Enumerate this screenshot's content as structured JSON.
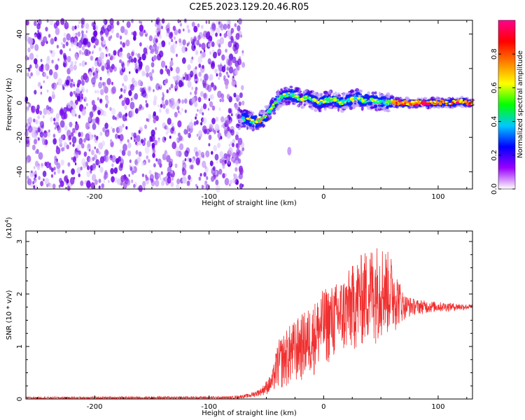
{
  "title": "C2E5.2023.129.20.46.R05",
  "chart_data": [
    {
      "type": "heatmap",
      "xlabel": "Height of straight line (km)",
      "ylabel": "Frequency (Hz)",
      "xlim": [
        -260,
        130
      ],
      "ylim": [
        -50,
        48
      ],
      "xticks": [
        -200,
        -100,
        0,
        100
      ],
      "yticks": [
        -40,
        -20,
        0,
        20,
        40
      ],
      "noise_region_end_x": -70,
      "trace": {
        "x": [
          -75,
          -70,
          -65,
          -60,
          -55,
          -50,
          -45,
          -40,
          -35,
          -30,
          -25,
          -20,
          -15,
          -10,
          -5,
          0,
          5,
          10,
          15,
          20,
          25,
          30,
          35,
          40,
          45,
          50,
          55,
          60,
          65,
          70,
          75,
          80,
          85,
          90,
          95,
          100,
          105,
          110,
          115,
          120,
          125,
          130
        ],
        "freq": [
          -9,
          -9,
          -10,
          -11,
          -10,
          -7,
          -3,
          2,
          4,
          5,
          4,
          2,
          3,
          2,
          0,
          1,
          2,
          2,
          0,
          1,
          2,
          3,
          1,
          2,
          1,
          1,
          0,
          1,
          0,
          0,
          0,
          0,
          0,
          0,
          0,
          0,
          0,
          0,
          0,
          1,
          0,
          0
        ]
      },
      "colorbar": {
        "label": "Normalized spectral amplitude",
        "range": [
          0,
          1
        ],
        "ticks": [
          "0.0",
          "0.2",
          "0.4",
          "0.6",
          "0.8"
        ],
        "colors": [
          "#ffffff",
          "#9a00ff",
          "#0000ff",
          "#00c8ff",
          "#00ff00",
          "#ffff00",
          "#ff8000",
          "#ff0000",
          "#ff0090"
        ]
      }
    },
    {
      "type": "line",
      "xlabel": "Height of straight line (km)",
      "ylabel": "SNR (10 * v/v)",
      "y_multiplier": "(x10",
      "y_multiplier_exp": "4",
      "y_multiplier_close": ")",
      "xlim": [
        -260,
        130
      ],
      "ylim": [
        0,
        3.2
      ],
      "xticks": [
        -200,
        -100,
        0,
        100
      ],
      "yticks": [
        0,
        1,
        2,
        3
      ],
      "color": "#f03030",
      "envelope": {
        "x": [
          -260,
          -80,
          -65,
          -55,
          -45,
          -40,
          -30,
          -20,
          -10,
          0,
          10,
          20,
          30,
          40,
          50,
          60,
          70,
          80,
          100,
          130
        ],
        "upper": [
          0.04,
          0.05,
          0.1,
          0.2,
          0.5,
          1.1,
          1.4,
          1.6,
          1.8,
          2.1,
          2.2,
          2.4,
          2.7,
          2.9,
          3.0,
          2.7,
          2.0,
          1.9,
          1.85,
          1.8
        ],
        "lower": [
          0.0,
          0.0,
          0.02,
          0.06,
          0.1,
          0.15,
          0.2,
          0.3,
          0.4,
          0.6,
          0.7,
          0.8,
          0.9,
          1.0,
          1.1,
          1.2,
          1.5,
          1.6,
          1.65,
          1.7
        ]
      }
    }
  ]
}
